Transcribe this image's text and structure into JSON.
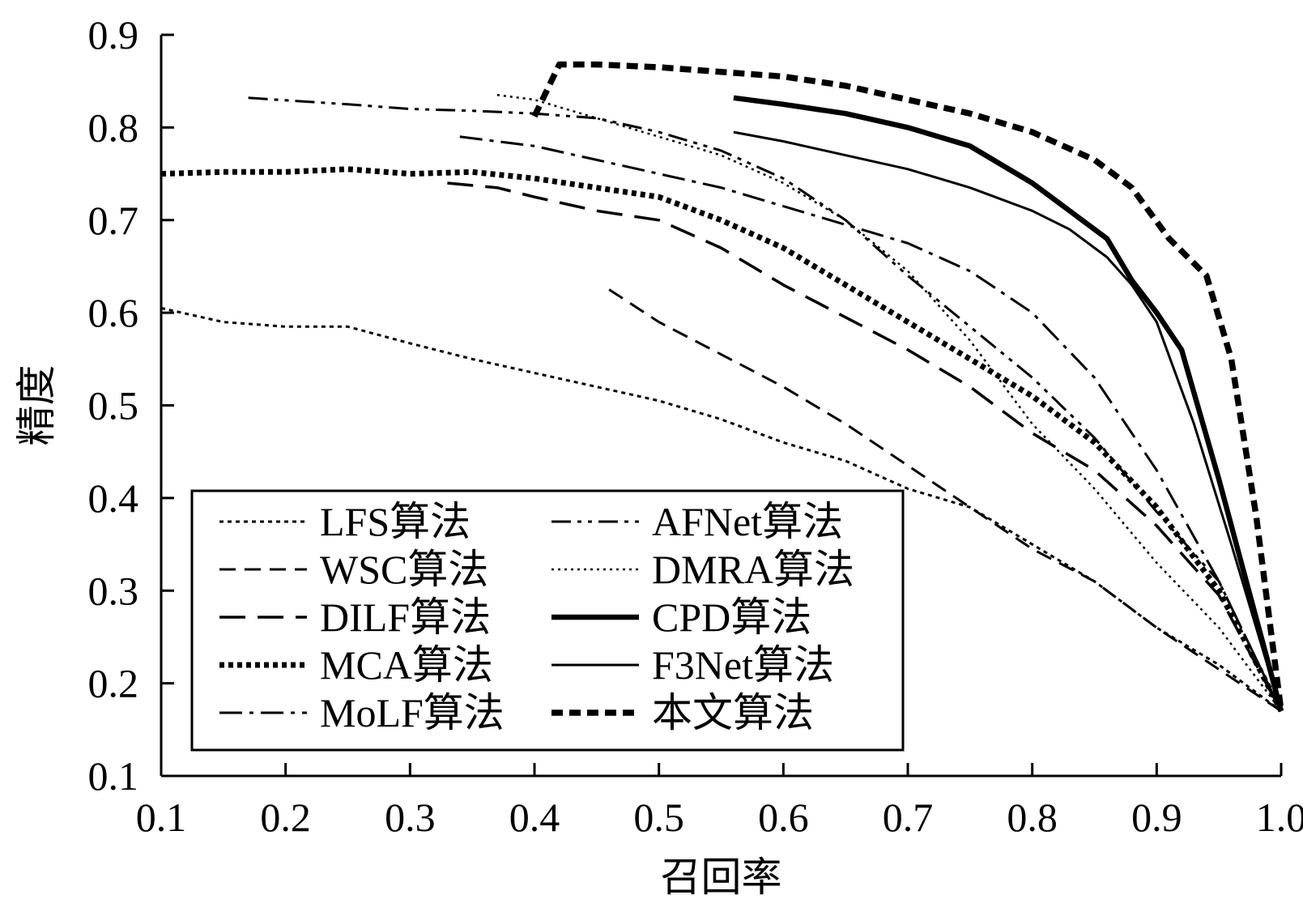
{
  "chart_data": {
    "type": "line",
    "xlabel": "召回率",
    "ylabel": "精度",
    "xlim": [
      0.1,
      1.0
    ],
    "ylim": [
      0.1,
      0.9
    ],
    "xticks": [
      "0.1",
      "0.2",
      "0.3",
      "0.4",
      "0.5",
      "0.6",
      "0.7",
      "0.8",
      "0.9",
      "1.0"
    ],
    "yticks": [
      "0.1",
      "0.2",
      "0.3",
      "0.4",
      "0.5",
      "0.6",
      "0.7",
      "0.8",
      "0.9"
    ],
    "grid": false,
    "legend_position": "bottom-left, two columns",
    "series": [
      {
        "name": "LFS算法",
        "style": "short-dot",
        "width": "thin",
        "x": [
          0.1,
          0.15,
          0.2,
          0.25,
          0.3,
          0.35,
          0.4,
          0.45,
          0.5,
          0.55,
          0.6,
          0.65,
          0.7,
          0.75,
          0.8,
          0.85,
          0.9,
          0.95,
          1.0
        ],
        "y": [
          0.605,
          0.59,
          0.585,
          0.585,
          0.567,
          0.55,
          0.535,
          0.52,
          0.505,
          0.485,
          0.46,
          0.44,
          0.41,
          0.39,
          0.35,
          0.31,
          0.26,
          0.22,
          0.17
        ]
      },
      {
        "name": "WSC算法",
        "style": "dash",
        "width": "thin",
        "x": [
          0.46,
          0.5,
          0.55,
          0.6,
          0.65,
          0.7,
          0.75,
          0.8,
          0.85,
          0.9,
          0.95,
          1.0
        ],
        "y": [
          0.625,
          0.59,
          0.555,
          0.52,
          0.48,
          0.435,
          0.39,
          0.345,
          0.31,
          0.26,
          0.215,
          0.17
        ]
      },
      {
        "name": "DILF算法",
        "style": "long-dash",
        "width": "thin",
        "x": [
          0.33,
          0.37,
          0.4,
          0.45,
          0.5,
          0.55,
          0.6,
          0.65,
          0.7,
          0.75,
          0.8,
          0.85,
          0.9,
          0.95,
          1.0
        ],
        "y": [
          0.74,
          0.735,
          0.725,
          0.71,
          0.7,
          0.67,
          0.63,
          0.595,
          0.56,
          0.52,
          0.47,
          0.43,
          0.37,
          0.295,
          0.17
        ]
      },
      {
        "name": "MCA算法",
        "style": "heavy-dot",
        "width": "thick",
        "x": [
          0.1,
          0.15,
          0.2,
          0.25,
          0.3,
          0.35,
          0.4,
          0.45,
          0.5,
          0.55,
          0.6,
          0.65,
          0.7,
          0.75,
          0.8,
          0.85,
          0.9,
          0.95,
          1.0
        ],
        "y": [
          0.75,
          0.752,
          0.752,
          0.755,
          0.75,
          0.752,
          0.745,
          0.735,
          0.725,
          0.7,
          0.67,
          0.63,
          0.59,
          0.55,
          0.51,
          0.46,
          0.39,
          0.3,
          0.17
        ]
      },
      {
        "name": "MoLF算法",
        "style": "dash-dot",
        "width": "thin",
        "x": [
          0.34,
          0.4,
          0.45,
          0.5,
          0.55,
          0.6,
          0.65,
          0.7,
          0.75,
          0.8,
          0.85,
          0.9,
          0.95,
          1.0
        ],
        "y": [
          0.79,
          0.78,
          0.765,
          0.75,
          0.735,
          0.715,
          0.695,
          0.675,
          0.645,
          0.6,
          0.53,
          0.43,
          0.31,
          0.17
        ]
      },
      {
        "name": "AFNet算法",
        "style": "dash-dot-dot",
        "width": "thin",
        "x": [
          0.17,
          0.25,
          0.3,
          0.35,
          0.4,
          0.45,
          0.5,
          0.55,
          0.6,
          0.65,
          0.7,
          0.75,
          0.8,
          0.85,
          0.9,
          0.95,
          1.0
        ],
        "y": [
          0.832,
          0.825,
          0.82,
          0.818,
          0.815,
          0.81,
          0.795,
          0.775,
          0.745,
          0.7,
          0.64,
          0.585,
          0.53,
          0.465,
          0.385,
          0.31,
          0.17
        ]
      },
      {
        "name": "DMRA算法",
        "style": "fine-dot",
        "width": "thin",
        "x": [
          0.37,
          0.4,
          0.45,
          0.5,
          0.55,
          0.6,
          0.65,
          0.7,
          0.75,
          0.8,
          0.85,
          0.9,
          0.95,
          1.0
        ],
        "y": [
          0.835,
          0.83,
          0.81,
          0.79,
          0.77,
          0.74,
          0.7,
          0.645,
          0.57,
          0.48,
          0.41,
          0.33,
          0.26,
          0.17
        ]
      },
      {
        "name": "CPD算法",
        "style": "solid",
        "width": "thick",
        "x": [
          0.56,
          0.6,
          0.65,
          0.7,
          0.75,
          0.8,
          0.83,
          0.86,
          0.88,
          0.9,
          0.92,
          0.95,
          1.0
        ],
        "y": [
          0.832,
          0.825,
          0.815,
          0.8,
          0.78,
          0.74,
          0.71,
          0.68,
          0.635,
          0.6,
          0.56,
          0.42,
          0.17
        ]
      },
      {
        "name": "F3Net算法",
        "style": "solid",
        "width": "thin",
        "x": [
          0.56,
          0.6,
          0.65,
          0.7,
          0.75,
          0.8,
          0.83,
          0.86,
          0.88,
          0.9,
          0.93,
          0.96,
          1.0
        ],
        "y": [
          0.795,
          0.785,
          0.77,
          0.755,
          0.735,
          0.71,
          0.69,
          0.66,
          0.63,
          0.59,
          0.48,
          0.35,
          0.17
        ]
      },
      {
        "name": "本文算法",
        "style": "heavy-dash",
        "width": "thick",
        "x": [
          0.4,
          0.42,
          0.45,
          0.5,
          0.55,
          0.6,
          0.65,
          0.7,
          0.75,
          0.8,
          0.85,
          0.88,
          0.91,
          0.94,
          0.96,
          0.98,
          1.0
        ],
        "y": [
          0.812,
          0.868,
          0.868,
          0.865,
          0.86,
          0.855,
          0.845,
          0.83,
          0.815,
          0.795,
          0.765,
          0.735,
          0.68,
          0.64,
          0.55,
          0.38,
          0.17
        ]
      }
    ]
  }
}
